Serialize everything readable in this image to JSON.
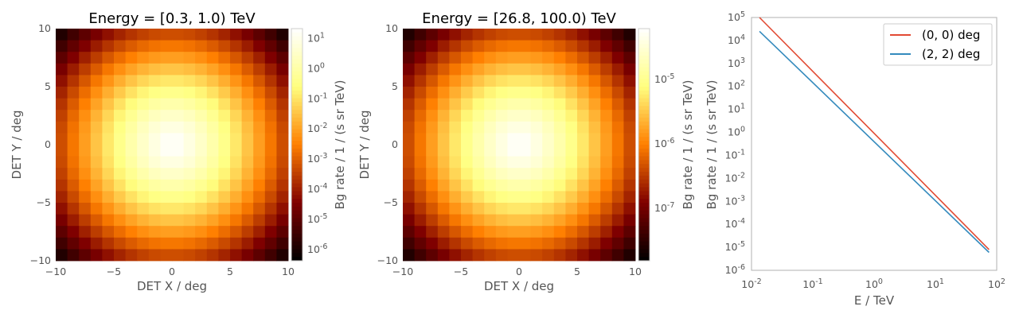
{
  "chart_data": [
    {
      "type": "heatmap",
      "title": "Energy = [0.3, 1.0) TeV",
      "xlabel": "DET X / deg",
      "ylabel": "DET Y / deg",
      "xlim": [
        -10,
        10
      ],
      "ylim": [
        -10,
        10
      ],
      "xticks": [
        -10,
        -5,
        0,
        5,
        10
      ],
      "yticks": [
        -10,
        -5,
        0,
        5,
        10
      ],
      "xtick_labels": [
        "−10",
        "−5",
        "0",
        "5",
        "10"
      ],
      "ytick_labels": [
        "−10",
        "−5",
        "0",
        "5",
        "10"
      ],
      "grid_bins": 20,
      "colormap": "afmhot",
      "colorbar": {
        "label": "Bg rate / 1 / (s sr TeV)",
        "scale": "log",
        "range": [
          4e-07,
          20
        ],
        "ticks": [
          1e-06,
          1e-05,
          0.0001,
          0.001,
          0.01,
          0.1,
          1.0,
          10.0
        ],
        "tick_labels": [
          {
            "base": "10",
            "exp": "-6"
          },
          {
            "base": "10",
            "exp": "-5"
          },
          {
            "base": "10",
            "exp": "-4"
          },
          {
            "base": "10",
            "exp": "-3"
          },
          {
            "base": "10",
            "exp": "-2"
          },
          {
            "base": "10",
            "exp": "-1"
          },
          {
            "base": "10",
            "exp": "0"
          },
          {
            "base": "10",
            "exp": "1"
          }
        ]
      },
      "center_value": 20,
      "corner_value": 4e-07
    },
    {
      "type": "heatmap",
      "title": "Energy = [26.8, 100.0) TeV",
      "xlabel": "DET X / deg",
      "ylabel": "DET Y / deg",
      "xlim": [
        -10,
        10
      ],
      "ylim": [
        -10,
        10
      ],
      "xticks": [
        -10,
        -5,
        0,
        5,
        10
      ],
      "yticks": [
        -10,
        -5,
        0,
        5,
        10
      ],
      "xtick_labels": [
        "−10",
        "−5",
        "0",
        "5",
        "10"
      ],
      "ytick_labels": [
        "−10",
        "−5",
        "0",
        "5",
        "10"
      ],
      "grid_bins": 20,
      "colormap": "afmhot",
      "colorbar": {
        "label": "Bg rate / 1 / (s sr TeV)",
        "scale": "log",
        "range": [
          1.5e-08,
          6e-05
        ],
        "ticks": [
          1e-07,
          1e-06,
          1e-05
        ],
        "tick_labels": [
          {
            "base": "10",
            "exp": "-7"
          },
          {
            "base": "10",
            "exp": "-6"
          },
          {
            "base": "10",
            "exp": "-5"
          }
        ]
      },
      "center_value": 6e-05,
      "corner_value": 1.5e-08
    },
    {
      "type": "line",
      "xlabel": "E / TeV",
      "ylabel": "Bg rate / 1 / (s sr TeV)",
      "xscale": "log",
      "yscale": "log",
      "xlim": [
        0.01,
        100
      ],
      "ylim": [
        1e-06,
        100000.0
      ],
      "xticks": [
        0.01,
        0.1,
        1,
        10,
        100
      ],
      "xtick_labels": [
        {
          "base": "10",
          "exp": "-2"
        },
        {
          "base": "10",
          "exp": "-1"
        },
        {
          "base": "10",
          "exp": "0"
        },
        {
          "base": "10",
          "exp": "1"
        },
        {
          "base": "10",
          "exp": "2"
        }
      ],
      "yticks": [
        1e-06,
        1e-05,
        0.0001,
        0.001,
        0.01,
        0.1,
        1.0,
        10.0,
        100.0,
        1000.0,
        10000.0,
        100000.0
      ],
      "ytick_labels": [
        {
          "base": "10",
          "exp": "-6"
        },
        {
          "base": "10",
          "exp": "-5"
        },
        {
          "base": "10",
          "exp": "-4"
        },
        {
          "base": "10",
          "exp": "-3"
        },
        {
          "base": "10",
          "exp": "-2"
        },
        {
          "base": "10",
          "exp": "-1"
        },
        {
          "base": "10",
          "exp": "0"
        },
        {
          "base": "10",
          "exp": "1"
        },
        {
          "base": "10",
          "exp": "2"
        },
        {
          "base": "10",
          "exp": "3"
        },
        {
          "base": "10",
          "exp": "4"
        },
        {
          "base": "10",
          "exp": "5"
        }
      ],
      "grid": false,
      "legend_position": "top-right",
      "series": [
        {
          "name": "(0, 0) deg",
          "color": "#e24a33",
          "x": [
            0.0135,
            75
          ],
          "y": [
            100000,
            8e-06
          ]
        },
        {
          "name": "(2, 2) deg",
          "color": "#348abd",
          "x": [
            0.0135,
            75
          ],
          "y": [
            25000,
            6e-06
          ]
        }
      ]
    }
  ]
}
